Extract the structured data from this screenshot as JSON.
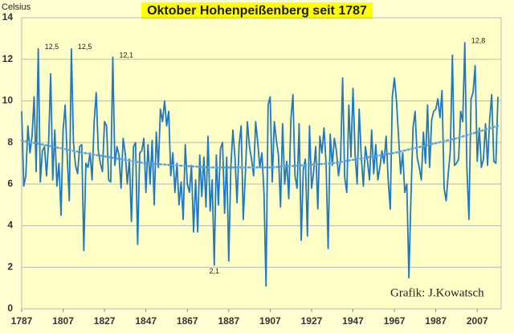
{
  "chart_data": {
    "type": "line",
    "title": "Oktober Hohenpeißenberg seit 1787",
    "y_label": "Celsius",
    "credit": "Grafik:  J.Kowatsch",
    "xlim": [
      1787,
      2017
    ],
    "xticks": [
      1787,
      1807,
      1827,
      1847,
      1867,
      1887,
      1907,
      1927,
      1947,
      1967,
      1987,
      2007
    ],
    "ylim": [
      0,
      14
    ],
    "yticks": [
      0,
      2,
      4,
      6,
      8,
      10,
      12,
      14
    ],
    "grid": true,
    "x": [
      1787,
      1788,
      1789,
      1790,
      1791,
      1792,
      1793,
      1794,
      1795,
      1796,
      1797,
      1798,
      1799,
      1800,
      1801,
      1802,
      1803,
      1804,
      1805,
      1806,
      1807,
      1808,
      1809,
      1810,
      1811,
      1812,
      1813,
      1814,
      1815,
      1816,
      1817,
      1818,
      1819,
      1820,
      1821,
      1822,
      1823,
      1824,
      1825,
      1826,
      1827,
      1828,
      1829,
      1830,
      1831,
      1832,
      1833,
      1834,
      1835,
      1836,
      1837,
      1838,
      1839,
      1840,
      1841,
      1842,
      1843,
      1844,
      1845,
      1846,
      1847,
      1848,
      1849,
      1850,
      1851,
      1852,
      1853,
      1854,
      1855,
      1856,
      1857,
      1858,
      1859,
      1860,
      1861,
      1862,
      1863,
      1864,
      1865,
      1866,
      1867,
      1868,
      1869,
      1870,
      1871,
      1872,
      1873,
      1874,
      1875,
      1876,
      1877,
      1878,
      1879,
      1880,
      1881,
      1882,
      1883,
      1884,
      1885,
      1886,
      1887,
      1888,
      1889,
      1890,
      1891,
      1892,
      1893,
      1894,
      1895,
      1896,
      1897,
      1898,
      1899,
      1900,
      1901,
      1902,
      1903,
      1904,
      1905,
      1906,
      1907,
      1908,
      1909,
      1910,
      1911,
      1912,
      1913,
      1914,
      1915,
      1916,
      1917,
      1918,
      1919,
      1920,
      1921,
      1922,
      1923,
      1924,
      1925,
      1926,
      1927,
      1928,
      1929,
      1930,
      1931,
      1932,
      1933,
      1934,
      1935,
      1936,
      1937,
      1938,
      1939,
      1940,
      1941,
      1942,
      1943,
      1944,
      1945,
      1946,
      1947,
      1948,
      1949,
      1950,
      1951,
      1952,
      1953,
      1954,
      1955,
      1956,
      1957,
      1958,
      1959,
      1960,
      1961,
      1962,
      1963,
      1964,
      1965,
      1966,
      1967,
      1968,
      1969,
      1970,
      1971,
      1972,
      1973,
      1974,
      1975,
      1976,
      1977,
      1978,
      1979,
      1980,
      1981,
      1982,
      1983,
      1984,
      1985,
      1986,
      1987,
      1988,
      1989,
      1990,
      1991,
      1992,
      1993,
      1994,
      1995,
      1996,
      1997,
      1998,
      1999,
      2000,
      2001,
      2002,
      2003,
      2004,
      2005,
      2006,
      2007,
      2008,
      2009,
      2010,
      2011,
      2012,
      2013,
      2014,
      2015,
      2016,
      2017
    ],
    "series": [
      {
        "color": "#1f78c1",
        "values": [
          9.5,
          5.9,
          6.4,
          8.8,
          7.5,
          8.3,
          10.2,
          6.6,
          12.5,
          6.1,
          7.6,
          7.8,
          6.4,
          8.0,
          11.3,
          6.2,
          8.6,
          5.9,
          7.0,
          4.5,
          8.6,
          9.8,
          7.3,
          5.2,
          12.5,
          8.0,
          6.9,
          6.5,
          7.8,
          7.9,
          2.8,
          7.0,
          6.8,
          7.5,
          6.2,
          9.0,
          10.4,
          7.6,
          7.0,
          6.6,
          9.0,
          8.8,
          6.2,
          6.1,
          12.1,
          6.9,
          7.8,
          7.4,
          5.8,
          8.2,
          7.5,
          6.0,
          7.2,
          4.2,
          7.8,
          8.0,
          3.1,
          7.5,
          7.6,
          8.2,
          5.6,
          7.9,
          6.0,
          8.1,
          5.0,
          8.5,
          6.8,
          9.6,
          9.0,
          10.0,
          8.8,
          9.5,
          6.4,
          7.5,
          5.6,
          7.0,
          5.0,
          6.1,
          4.3,
          7.9,
          6.0,
          5.6,
          6.9,
          3.7,
          6.2,
          3.7,
          7.4,
          5.4,
          7.3,
          4.9,
          8.3,
          4.7,
          6.2,
          2.1,
          7.4,
          5.0,
          7.7,
          8.0,
          4.6,
          7.3,
          2.3,
          6.8,
          8.6,
          7.3,
          5.1,
          7.9,
          8.8,
          4.3,
          6.4,
          9.0,
          7.8,
          7.2,
          6.4,
          9.0,
          8.0,
          6.8,
          7.5,
          5.6,
          1.1,
          9.8,
          10.2,
          6.1,
          9.0,
          8.1,
          7.4,
          4.9,
          8.9,
          6.0,
          7.1,
          5.3,
          9.1,
          10.3,
          6.4,
          5.8,
          8.9,
          3.3,
          6.7,
          7.2,
          3.5,
          8.8,
          5.8,
          6.6,
          7.8,
          4.8,
          8.3,
          7.5,
          8.7,
          7.0,
          2.9,
          8.4,
          6.9,
          8.2,
          7.6,
          6.4,
          7.2,
          11.1,
          6.3,
          5.6,
          9.8,
          7.3,
          10.6,
          7.5,
          6.0,
          9.6,
          7.3,
          5.9,
          7.8,
          7.1,
          6.2,
          8.6,
          6.5,
          7.9,
          6.2,
          6.8,
          7.6,
          7.0,
          8.3,
          6.2,
          4.8,
          10.2,
          11.1,
          10.0,
          8.3,
          6.5,
          7.5,
          5.6,
          6.0,
          1.5,
          5.4,
          8.7,
          9.5,
          7.3,
          6.8,
          6.2,
          8.5,
          7.0,
          9.8,
          6.8,
          9.1,
          9.5,
          9.6,
          10.1,
          9.2,
          10.5,
          5.8,
          5.2,
          6.5,
          7.6,
          12.2,
          6.9,
          7.0,
          7.2,
          9.5,
          9.0,
          12.8,
          6.8,
          4.3,
          10.1,
          10.4,
          11.7,
          7.1,
          8.7,
          6.8,
          7.2,
          8.9,
          6.9,
          9.1,
          10.3,
          7.1,
          7.0,
          10.2
        ]
      }
    ],
    "trendline": {
      "color": "#5ba3de",
      "x": [
        1787,
        1817,
        1847,
        1877,
        1907,
        1937,
        1967,
        1997,
        2017
      ],
      "values": [
        8.1,
        7.5,
        7.0,
        6.8,
        6.8,
        7.0,
        7.5,
        8.2,
        8.8
      ]
    },
    "annotations": [
      {
        "x": 1795,
        "y": 12.5,
        "text": "12,5"
      },
      {
        "x": 1811,
        "y": 12.5,
        "text": "12,5"
      },
      {
        "x": 1831,
        "y": 12.1,
        "text": "12,1"
      },
      {
        "x": 1880,
        "y": 2.1,
        "text": "2,1"
      },
      {
        "x": 2001,
        "y": 12.8,
        "text": "12,8"
      }
    ]
  }
}
